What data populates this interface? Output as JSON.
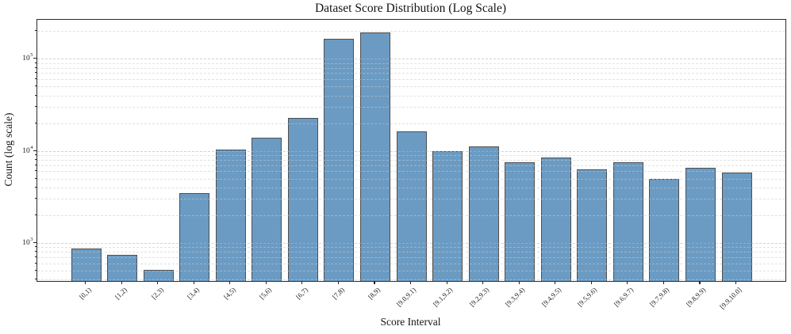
{
  "chart_data": {
    "type": "bar",
    "title": "Dataset Score Distribution (Log Scale)",
    "xlabel": "Score Interval",
    "ylabel": "Count (log scale)",
    "yscale": "log",
    "ylim": [
      385,
      265000
    ],
    "grid": "horizontal dashed gridlines, major and minor (log decades), drawn over bars",
    "legend": "none",
    "categories": [
      "[0,1)",
      "[1,2)",
      "[2,3)",
      "[3,4)",
      "[4,5)",
      "[5,6)",
      "[6,7)",
      "[7,8)",
      "[8,9)",
      "[9.0,9.1)",
      "[9.1,9.2)",
      "[9.2,9.3)",
      "[9.3,9.4)",
      "[9.4,9.5)",
      "[9.5,9.6)",
      "[9.6,9.7)",
      "[9.7,9.8)",
      "[9.8,9.9)",
      "[9.9,10.0]"
    ],
    "values": [
      870,
      740,
      510,
      3500,
      10300,
      13800,
      22700,
      165000,
      194000,
      16300,
      10000,
      11100,
      7500,
      8500,
      6300,
      7500,
      5000,
      6600,
      5800
    ],
    "y_ticks": [
      {
        "value": 1000,
        "base": "10",
        "exp": "3"
      },
      {
        "value": 10000,
        "base": "10",
        "exp": "4"
      },
      {
        "value": 100000,
        "base": "10",
        "exp": "5"
      }
    ],
    "x_tick_rotation_deg": 45,
    "bar_color": "#6b9bc3",
    "bar_edge_color": "#4e4e4e",
    "gridline_color": "#c6cace",
    "text_color": "#141414"
  }
}
